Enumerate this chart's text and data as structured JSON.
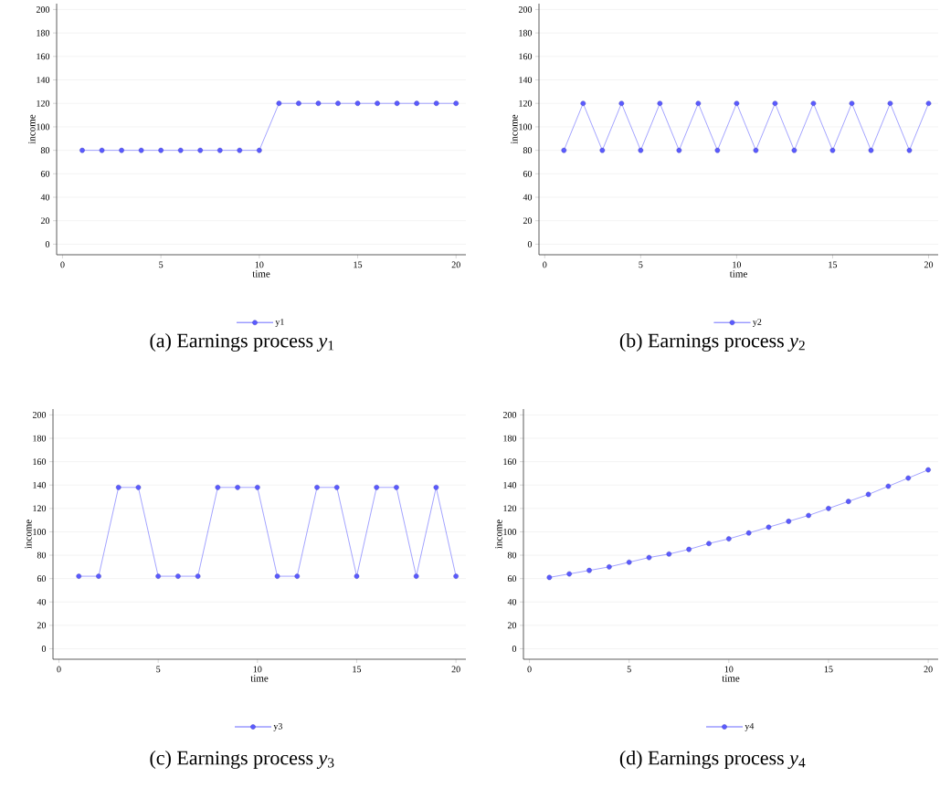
{
  "chart_data": [
    {
      "type": "line",
      "x": [
        1,
        2,
        3,
        4,
        5,
        6,
        7,
        8,
        9,
        10,
        11,
        12,
        13,
        14,
        15,
        16,
        17,
        18,
        19,
        20
      ],
      "xlabel": "time",
      "ylabel": "income",
      "xlim": [
        -0.3,
        20.5
      ],
      "ylim": [
        -9,
        205
      ],
      "xticks": [
        0,
        5,
        10,
        15,
        20
      ],
      "yticks": [
        0,
        20,
        40,
        60,
        80,
        100,
        120,
        140,
        160,
        180,
        200
      ],
      "grid": "y",
      "marker": "circle",
      "legend": "bottom",
      "annotations": [
        "(a) Earnings process *y*$_{1}$"
      ],
      "series": [
        {
          "name": "y1",
          "color": "#5a5aff",
          "values": [
            80,
            80,
            80,
            80,
            80,
            80,
            80,
            80,
            80,
            80,
            120,
            120,
            120,
            120,
            120,
            120,
            120,
            120,
            120,
            120
          ]
        }
      ]
    },
    {
      "type": "line",
      "x": [
        1,
        2,
        3,
        4,
        5,
        6,
        7,
        8,
        9,
        10,
        11,
        12,
        13,
        14,
        15,
        16,
        17,
        18,
        19,
        20
      ],
      "xlabel": "time",
      "ylabel": "income",
      "xlim": [
        -0.3,
        20.5
      ],
      "ylim": [
        -9,
        205
      ],
      "xticks": [
        0,
        5,
        10,
        15,
        20
      ],
      "yticks": [
        0,
        20,
        40,
        60,
        80,
        100,
        120,
        140,
        160,
        180,
        200
      ],
      "grid": "y",
      "marker": "circle",
      "legend": "bottom",
      "annotations": [
        "(b) Earnings process *y*$_{2}$"
      ],
      "series": [
        {
          "name": "y2",
          "color": "#5a5aff",
          "values": [
            80,
            120,
            80,
            120,
            80,
            120,
            80,
            120,
            80,
            120,
            80,
            120,
            80,
            120,
            80,
            120,
            80,
            120,
            80,
            120
          ]
        }
      ]
    },
    {
      "type": "line",
      "x": [
        1,
        2,
        3,
        4,
        5,
        6,
        7,
        8,
        9,
        10,
        11,
        12,
        13,
        14,
        15,
        16,
        17,
        18,
        19,
        20
      ],
      "xlabel": "time",
      "ylabel": "income",
      "xlim": [
        -0.3,
        20.5
      ],
      "ylim": [
        -9,
        205
      ],
      "xticks": [
        0,
        5,
        10,
        15,
        20
      ],
      "yticks": [
        0,
        20,
        40,
        60,
        80,
        100,
        120,
        140,
        160,
        180,
        200
      ],
      "grid": "y",
      "marker": "circle",
      "legend": "bottom",
      "annotations": [
        "(c) Earnings process *y*$_{3}$"
      ],
      "series": [
        {
          "name": "y3",
          "color": "#5a5aff",
          "values": [
            62,
            62,
            138,
            138,
            62,
            62,
            62,
            138,
            138,
            138,
            62,
            62,
            138,
            138,
            62,
            138,
            138,
            62,
            138,
            62
          ]
        }
      ]
    },
    {
      "type": "line",
      "x": [
        1,
        2,
        3,
        4,
        5,
        6,
        7,
        8,
        9,
        10,
        11,
        12,
        13,
        14,
        15,
        16,
        17,
        18,
        19,
        20
      ],
      "xlabel": "time",
      "ylabel": "income",
      "xlim": [
        -0.3,
        20.5
      ],
      "ylim": [
        -9,
        205
      ],
      "xticks": [
        0,
        5,
        10,
        15,
        20
      ],
      "yticks": [
        0,
        20,
        40,
        60,
        80,
        100,
        120,
        140,
        160,
        180,
        200
      ],
      "grid": "y",
      "marker": "circle",
      "legend": "bottom",
      "annotations": [
        "(d) Earnings process *y*$_{4}$"
      ],
      "series": [
        {
          "name": "y4",
          "color": "#5a5aff",
          "values": [
            61,
            64,
            67,
            70,
            74,
            78,
            81,
            85,
            90,
            94,
            99,
            104,
            109,
            114,
            120,
            126,
            132,
            139,
            146,
            153
          ]
        }
      ]
    }
  ]
}
